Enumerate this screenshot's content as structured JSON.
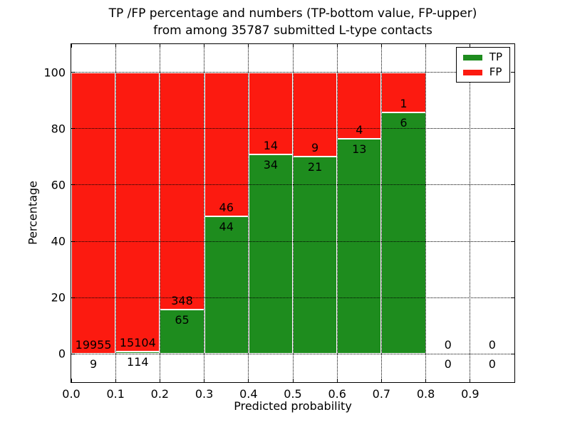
{
  "title": {
    "line1": "TP /FP percentage and numbers (TP-bottom value, FP-upper)",
    "line2": "from among 35787 submitted L-type contacts"
  },
  "x_axis": {
    "label": "Predicted probability",
    "tick_labels": [
      "0.0",
      "0.1",
      "0.2",
      "0.3",
      "0.4",
      "0.5",
      "0.6",
      "0.7",
      "0.8",
      "0.9"
    ],
    "tick_values": [
      0,
      0.1,
      0.2,
      0.3,
      0.4,
      0.5,
      0.6,
      0.7,
      0.8,
      0.9
    ]
  },
  "y_axis": {
    "label": "Percentage",
    "tick_labels": [
      "0",
      "20",
      "40",
      "60",
      "80",
      "100"
    ],
    "tick_values": [
      0,
      20,
      40,
      60,
      80,
      100
    ]
  },
  "legend": {
    "items": [
      {
        "label": "TP",
        "color": "#1e8c1e"
      },
      {
        "label": "FP",
        "color": "#fc1a10"
      }
    ]
  },
  "colors": {
    "tp": "#1e8c1e",
    "fp": "#fc1a10",
    "grid": "#000000"
  },
  "chart_data": {
    "type": "bar",
    "stacked": true,
    "title": "TP /FP percentage and numbers (TP-bottom value, FP-upper) from among 35787 submitted L-type contacts",
    "xlabel": "Predicted probability",
    "ylabel": "Percentage",
    "xlim": [
      0,
      1.0
    ],
    "ylim": [
      -10,
      110
    ],
    "grid": true,
    "legend_position": "upper right",
    "total_contacts": 35787,
    "note": "Each bin is a stacked bar normalized to 100%: TP (green) on bottom, FP (red) on top. Labels show raw counts: FP count above the TP/FP boundary, TP count below it.",
    "bins": [
      {
        "range": [
          0.0,
          0.1
        ],
        "tp": 9,
        "fp": 19955
      },
      {
        "range": [
          0.1,
          0.2
        ],
        "tp": 114,
        "fp": 15104
      },
      {
        "range": [
          0.2,
          0.3
        ],
        "tp": 65,
        "fp": 348
      },
      {
        "range": [
          0.3,
          0.4
        ],
        "tp": 44,
        "fp": 46
      },
      {
        "range": [
          0.4,
          0.5
        ],
        "tp": 34,
        "fp": 14
      },
      {
        "range": [
          0.5,
          0.6
        ],
        "tp": 21,
        "fp": 9
      },
      {
        "range": [
          0.6,
          0.7
        ],
        "tp": 13,
        "fp": 4
      },
      {
        "range": [
          0.7,
          0.8
        ],
        "tp": 6,
        "fp": 1
      },
      {
        "range": [
          0.8,
          0.9
        ],
        "tp": 0,
        "fp": 0
      },
      {
        "range": [
          0.9,
          1.0
        ],
        "tp": 0,
        "fp": 0
      }
    ]
  }
}
